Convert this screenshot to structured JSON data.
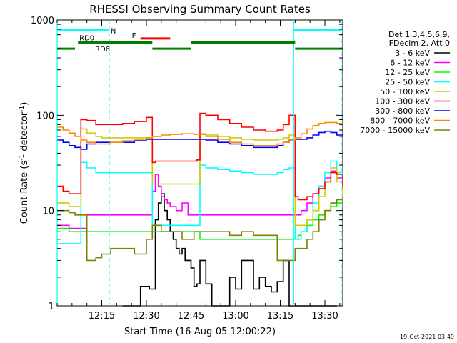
{
  "chart_data": {
    "type": "line",
    "title": "RHESSI Observing Summary Count Rates",
    "xlabel": "Start Time (16-Aug-05 12:00:22)",
    "ylabel": "Count Rate (s⁻¹ detector⁻¹)",
    "ylabel_parts": {
      "main": "Count Rate (s",
      "sup1": "-1",
      "mid": " detector",
      "sup2": "-1",
      "end": ")"
    },
    "y_scale": "log",
    "ylim": [
      1,
      1000
    ],
    "y_ticks": [
      {
        "value": 1,
        "label": "1"
      },
      {
        "value": 10,
        "label": "10"
      },
      {
        "value": 100,
        "label": "100"
      },
      {
        "value": 1000,
        "label": "1000"
      }
    ],
    "x_unit": "minutes since 12:00",
    "xlim": [
      0,
      96
    ],
    "x_ticks": [
      {
        "value": 15,
        "label": "12:15"
      },
      {
        "value": 30,
        "label": "12:30"
      },
      {
        "value": 45,
        "label": "12:45"
      },
      {
        "value": 60,
        "label": "13:00"
      },
      {
        "value": 75,
        "label": "13:15"
      },
      {
        "value": 90,
        "label": "13:30"
      }
    ],
    "legend": {
      "placement": "right",
      "header": [
        "Det 1,3,4,5,6,9,",
        "FDecim 2, Att 0"
      ]
    },
    "series": [
      {
        "name": "3 - 6 keV",
        "color": "#000000",
        "x": [
          22,
          26,
          28,
          31,
          33,
          34,
          35,
          36,
          37,
          38,
          39,
          40,
          41,
          42,
          43,
          44,
          45,
          46,
          47,
          48,
          50,
          52,
          54,
          56,
          58,
          60,
          62,
          64,
          66,
          68,
          70,
          72,
          74,
          76,
          78,
          80,
          81,
          82,
          84,
          86,
          88,
          90,
          92,
          94
        ],
        "y": [
          1,
          1,
          1.6,
          1.5,
          8,
          12,
          15,
          10,
          8,
          6,
          5,
          4,
          3.5,
          4,
          3,
          3,
          2.5,
          1.6,
          1.7,
          3,
          1.7,
          1,
          1,
          1,
          2,
          1.5,
          3,
          3,
          1.5,
          2,
          1.6,
          1.4,
          1.8,
          3,
          1,
          1,
          1,
          1,
          1,
          1,
          1,
          1,
          1,
          1
        ]
      },
      {
        "name": "6 - 12 keV",
        "color": "#ff00ff",
        "x": [
          0,
          2,
          4,
          6,
          8,
          10,
          13,
          15,
          18,
          22,
          26,
          30,
          32,
          33,
          34,
          35,
          36,
          37,
          38,
          40,
          42,
          44,
          46,
          47,
          48,
          50,
          54,
          58,
          62,
          66,
          70,
          74,
          76,
          78,
          80,
          81,
          82,
          84,
          86,
          88,
          90,
          92,
          94,
          96
        ],
        "y": [
          7,
          7,
          6.5,
          6.5,
          6.5,
          9,
          9,
          9,
          9,
          9,
          9,
          9,
          16,
          24,
          18,
          14,
          13,
          12,
          11,
          10,
          12,
          9,
          9,
          9,
          9,
          9,
          9,
          9,
          9,
          9,
          9,
          9,
          9,
          9,
          9,
          9,
          10,
          12,
          15,
          18,
          22,
          26,
          22,
          16
        ]
      },
      {
        "name": "12 - 25 keV",
        "color": "#00ff00",
        "x": [
          0,
          2,
          4,
          6,
          8,
          10,
          13,
          15,
          18,
          22,
          26,
          30,
          32,
          33,
          35,
          38,
          42,
          46,
          47,
          48,
          50,
          54,
          58,
          62,
          66,
          70,
          74,
          76,
          78,
          80,
          81,
          82,
          84,
          86,
          88,
          90,
          92,
          94,
          96
        ],
        "y": [
          6.5,
          6.5,
          6,
          6,
          6,
          6,
          6,
          6,
          6,
          6,
          6,
          6,
          6,
          6,
          6,
          6,
          6,
          6,
          6,
          5,
          5,
          5,
          5,
          5,
          5,
          5,
          5,
          5,
          5,
          5,
          5.5,
          6,
          7,
          8,
          9,
          10,
          11,
          12,
          12
        ]
      },
      {
        "name": "25 - 50 keV",
        "color": "#00ffff",
        "x": [
          0,
          2,
          4,
          6,
          7,
          8,
          10,
          13,
          15,
          18,
          22,
          26,
          30,
          32,
          33,
          35,
          38,
          42,
          46,
          47,
          48,
          50,
          54,
          58,
          62,
          66,
          70,
          74,
          76,
          78,
          80,
          81,
          82,
          84,
          86,
          88,
          90,
          92,
          94,
          96
        ],
        "y": [
          4.5,
          4.5,
          4.5,
          4.5,
          4.5,
          32,
          28,
          25,
          25,
          25,
          25,
          25,
          25,
          7,
          7,
          7,
          7,
          7,
          7,
          7,
          30,
          28,
          27,
          26,
          25,
          24,
          24,
          25,
          27,
          28,
          5,
          5,
          6,
          8,
          12,
          18,
          25,
          33,
          25,
          20
        ]
      },
      {
        "name": "50 - 100 keV",
        "color": "#cccc00",
        "x": [
          0,
          2,
          4,
          6,
          7,
          8,
          10,
          13,
          15,
          18,
          22,
          26,
          30,
          32,
          33,
          35,
          38,
          42,
          46,
          47,
          48,
          50,
          54,
          58,
          62,
          66,
          70,
          74,
          76,
          78,
          80,
          81,
          82,
          84,
          86,
          88,
          90,
          92,
          94,
          96
        ],
        "y": [
          12,
          12,
          11,
          11,
          11,
          72,
          65,
          60,
          58,
          58,
          58,
          58,
          58,
          19,
          19,
          19,
          19,
          19,
          19,
          19,
          64,
          62,
          60,
          58,
          56,
          55,
          55,
          56,
          58,
          62,
          7,
          7,
          7,
          8,
          10,
          14,
          20,
          28,
          20,
          14
        ]
      },
      {
        "name": "100 - 300 keV",
        "color": "#ff0000",
        "x": [
          0,
          2,
          4,
          6,
          7,
          8,
          10,
          13,
          15,
          18,
          22,
          26,
          30,
          32,
          33,
          35,
          38,
          42,
          46,
          47,
          48,
          50,
          54,
          58,
          62,
          66,
          70,
          74,
          76,
          78,
          80,
          81,
          82,
          84,
          86,
          88,
          90,
          92,
          94,
          96
        ],
        "y": [
          18,
          16,
          15,
          15,
          15,
          90,
          88,
          80,
          80,
          80,
          82,
          86,
          95,
          32,
          33,
          33,
          33,
          33,
          33,
          34,
          105,
          100,
          90,
          82,
          75,
          70,
          68,
          70,
          80,
          100,
          14,
          13,
          13,
          14,
          15,
          17,
          20,
          25,
          24,
          18
        ]
      },
      {
        "name": "300 - 800 keV",
        "color": "#0000ff",
        "x": [
          0,
          2,
          4,
          6,
          8,
          10,
          13,
          15,
          18,
          22,
          26,
          30,
          32,
          33,
          35,
          38,
          42,
          46,
          47,
          48,
          50,
          54,
          58,
          62,
          66,
          70,
          74,
          76,
          78,
          80,
          82,
          84,
          86,
          88,
          90,
          92,
          94,
          96
        ],
        "y": [
          55,
          52,
          48,
          46,
          44,
          50,
          52,
          52,
          52,
          52,
          54,
          56,
          56,
          56,
          56,
          56,
          56,
          56,
          56,
          56,
          55,
          52,
          50,
          48,
          46,
          46,
          48,
          52,
          55,
          56,
          56,
          58,
          62,
          66,
          68,
          66,
          62,
          60
        ]
      },
      {
        "name": "800 - 7000 keV",
        "color": "#ff8800",
        "x": [
          0,
          2,
          4,
          6,
          8,
          10,
          13,
          15,
          18,
          22,
          26,
          30,
          32,
          35,
          38,
          42,
          46,
          50,
          54,
          58,
          62,
          66,
          70,
          74,
          76,
          78,
          80,
          82,
          84,
          86,
          88,
          90,
          92,
          94,
          96
        ],
        "y": [
          75,
          70,
          65,
          60,
          55,
          52,
          50,
          50,
          52,
          54,
          56,
          58,
          60,
          62,
          63,
          64,
          63,
          60,
          56,
          52,
          50,
          48,
          48,
          50,
          52,
          55,
          58,
          64,
          72,
          78,
          82,
          84,
          84,
          82,
          80
        ]
      },
      {
        "name": "7000 - 15000 keV",
        "color": "#808000",
        "x": [
          0,
          2,
          4,
          6,
          8,
          10,
          13,
          15,
          18,
          22,
          26,
          30,
          32,
          35,
          38,
          42,
          46,
          48,
          50,
          54,
          58,
          62,
          66,
          70,
          74,
          76,
          78,
          80,
          82,
          84,
          86,
          88,
          90,
          92,
          94,
          96
        ],
        "y": [
          10,
          10,
          9.5,
          9,
          9,
          3,
          3.2,
          3.5,
          4,
          4,
          3.5,
          5,
          7,
          6,
          6,
          5,
          6,
          6,
          6,
          6,
          5.5,
          6,
          5.5,
          5.5,
          3,
          3,
          3,
          4,
          4,
          5,
          6,
          8,
          10,
          12,
          13,
          12
        ]
      }
    ],
    "vertical_lines": [
      {
        "x": 0,
        "color": "#00ffff",
        "style": "solid"
      },
      {
        "x": 17.5,
        "color": "#00ffff",
        "style": "dashed"
      },
      {
        "x": 79.5,
        "color": "#00ffff",
        "style": "solid"
      },
      {
        "x": 95.5,
        "color": "#00ffff",
        "style": "dashed"
      }
    ],
    "flag_bars": [
      {
        "label": "N",
        "color": "#00ffff",
        "level": 780,
        "segments": [
          [
            0,
            17.5
          ],
          [
            79.5,
            96
          ]
        ]
      },
      {
        "label": "F",
        "color": "#ff0000",
        "level": 640,
        "segments": [
          [
            28,
            38
          ]
        ]
      },
      {
        "label": "RD0",
        "color": "#008000",
        "level": 580,
        "segments": [
          [
            7,
            32
          ],
          [
            45,
            80
          ]
        ]
      },
      {
        "label": "RD6",
        "color": "#008000",
        "level": 500,
        "segments": [
          [
            0,
            6
          ],
          [
            32,
            45
          ],
          [
            80,
            96
          ]
        ]
      }
    ],
    "timestamp": "19-Oct-2021 03:49"
  }
}
